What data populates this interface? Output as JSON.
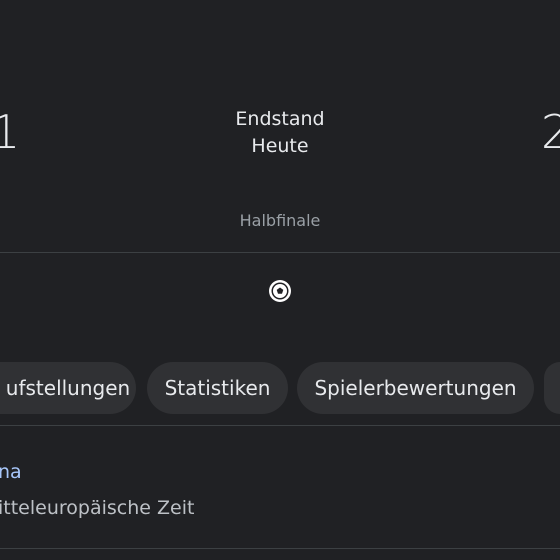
{
  "match": {
    "home_score": 1,
    "away_score": 2,
    "status": "Endstand",
    "date": "Heute",
    "stage": "Halbfinale"
  },
  "tabs": [
    "ufstellungen",
    "Statistiken",
    "Spielerbewertungen"
  ],
  "info": {
    "link": "na",
    "timezone": "itteleuropäische Zeit"
  }
}
